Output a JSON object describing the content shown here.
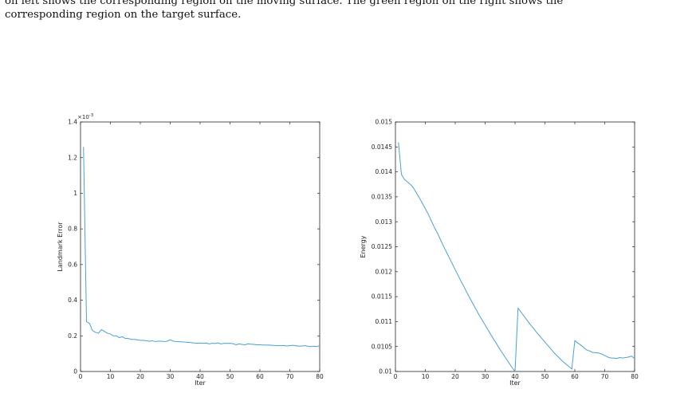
{
  "caption": {
    "line1": "on left shows the corresponding region on the moving surface. The green region on the right shows the",
    "line2": "corresponding region on the target surface."
  },
  "colors": {
    "series": "#4a9fd8",
    "axis": "#262626"
  },
  "chart_data": [
    {
      "type": "line",
      "title": "",
      "xlabel": "Iter",
      "ylabel": "Landmark Error",
      "y_exponent_label": "×10",
      "y_exponent_power": "-3",
      "xlim": [
        0,
        80
      ],
      "ylim": [
        0,
        1.4
      ],
      "xticks": [
        0,
        10,
        20,
        30,
        40,
        50,
        60,
        70,
        80
      ],
      "yticks": [
        0,
        0.2,
        0.4,
        0.6,
        0.8,
        1,
        1.2,
        1.4
      ],
      "x": [
        1,
        2,
        3,
        4,
        5,
        6,
        7,
        8,
        9,
        10,
        11,
        12,
        13,
        14,
        15,
        16,
        17,
        18,
        19,
        20,
        21,
        22,
        23,
        24,
        25,
        26,
        27,
        28,
        29,
        30,
        31,
        32,
        33,
        34,
        35,
        36,
        37,
        38,
        39,
        40,
        41,
        42,
        43,
        44,
        45,
        46,
        47,
        48,
        49,
        50,
        51,
        52,
        53,
        54,
        55,
        56,
        57,
        58,
        59,
        60,
        61,
        62,
        63,
        64,
        65,
        66,
        67,
        68,
        69,
        70,
        71,
        72,
        73,
        74,
        75,
        76,
        77,
        78,
        79,
        80
      ],
      "y": [
        1.26,
        0.28,
        0.27,
        0.23,
        0.22,
        0.215,
        0.235,
        0.225,
        0.215,
        0.21,
        0.2,
        0.2,
        0.19,
        0.195,
        0.185,
        0.185,
        0.18,
        0.18,
        0.178,
        0.175,
        0.175,
        0.172,
        0.17,
        0.172,
        0.168,
        0.17,
        0.17,
        0.168,
        0.17,
        0.178,
        0.17,
        0.168,
        0.167,
        0.166,
        0.165,
        0.163,
        0.162,
        0.16,
        0.158,
        0.16,
        0.158,
        0.16,
        0.155,
        0.158,
        0.157,
        0.16,
        0.155,
        0.158,
        0.157,
        0.158,
        0.156,
        0.15,
        0.155,
        0.152,
        0.15,
        0.155,
        0.153,
        0.152,
        0.15,
        0.15,
        0.149,
        0.148,
        0.148,
        0.147,
        0.146,
        0.145,
        0.145,
        0.146,
        0.143,
        0.145,
        0.147,
        0.145,
        0.142,
        0.143,
        0.145,
        0.142,
        0.14,
        0.142,
        0.14,
        0.145
      ]
    },
    {
      "type": "line",
      "title": "",
      "xlabel": "Iter",
      "ylabel": "Energy",
      "xlim": [
        0,
        80
      ],
      "ylim": [
        0.01,
        0.015
      ],
      "xticks": [
        0,
        10,
        20,
        30,
        40,
        50,
        60,
        70,
        80
      ],
      "yticks": [
        0.01,
        0.0105,
        0.011,
        0.0115,
        0.012,
        0.0125,
        0.013,
        0.0135,
        0.014,
        0.0145,
        0.015
      ],
      "x": [
        1,
        2,
        3,
        4,
        5,
        6,
        7,
        8,
        9,
        10,
        11,
        12,
        13,
        14,
        15,
        16,
        17,
        18,
        19,
        20,
        21,
        22,
        23,
        24,
        25,
        26,
        27,
        28,
        29,
        30,
        31,
        32,
        33,
        34,
        35,
        36,
        37,
        38,
        39,
        40,
        41,
        42,
        43,
        44,
        45,
        46,
        47,
        48,
        49,
        50,
        51,
        52,
        53,
        54,
        55,
        56,
        57,
        58,
        59,
        60,
        61,
        62,
        63,
        64,
        65,
        66,
        67,
        68,
        69,
        70,
        71,
        72,
        73,
        74,
        75,
        76,
        77,
        78,
        79,
        80
      ],
      "y": [
        0.01459,
        0.01395,
        0.01385,
        0.0138,
        0.01375,
        0.01368,
        0.01358,
        0.01348,
        0.01337,
        0.01326,
        0.01315,
        0.01302,
        0.01289,
        0.01278,
        0.01265,
        0.01252,
        0.0124,
        0.01228,
        0.01216,
        0.01204,
        0.01192,
        0.0118,
        0.01169,
        0.01157,
        0.01146,
        0.01135,
        0.01124,
        0.01113,
        0.01103,
        0.01093,
        0.01083,
        0.01073,
        0.01063,
        0.01054,
        0.01044,
        0.01035,
        0.01026,
        0.01017,
        0.01008,
        0.01,
        0.01127,
        0.01119,
        0.01111,
        0.01103,
        0.01095,
        0.01088,
        0.0108,
        0.01073,
        0.01066,
        0.01059,
        0.01052,
        0.01045,
        0.01038,
        0.01032,
        0.01026,
        0.0102,
        0.01015,
        0.0101,
        0.01005,
        0.01062,
        0.01057,
        0.01053,
        0.01048,
        0.01043,
        0.01041,
        0.01038,
        0.01038,
        0.01037,
        0.01035,
        0.01032,
        0.01029,
        0.01027,
        0.01027,
        0.01026,
        0.01028,
        0.01027,
        0.01028,
        0.01029,
        0.01031,
        0.01026
      ]
    }
  ]
}
